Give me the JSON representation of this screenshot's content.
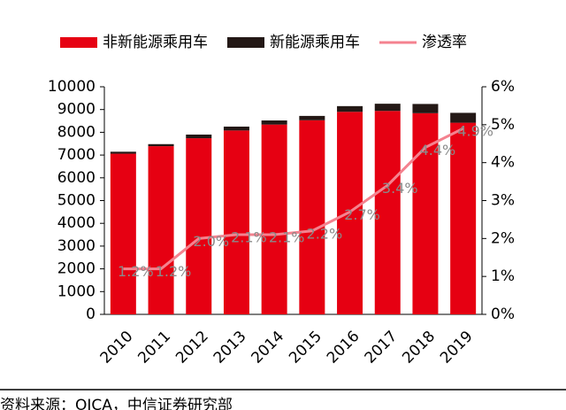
{
  "chart_data": {
    "type": "stacked_bar_line",
    "categories": [
      "2010",
      "2011",
      "2012",
      "2013",
      "2014",
      "2015",
      "2016",
      "2017",
      "2018",
      "2019"
    ],
    "series": [
      {
        "name": "非新能源乘用车",
        "color": "#e60012",
        "values": [
          7060,
          7390,
          7740,
          8080,
          8340,
          8530,
          8900,
          8940,
          8840,
          8420
        ]
      },
      {
        "name": "新能源乘用车",
        "color": "#231815",
        "values": [
          86,
          90,
          160,
          170,
          180,
          190,
          250,
          315,
          405,
          435
        ]
      },
      {
        "name": "渗透率",
        "color": "#f4828f",
        "axis": "y2",
        "type": "line",
        "values": [
          1.2,
          1.2,
          2.0,
          2.1,
          2.1,
          2.2,
          2.7,
          3.4,
          4.4,
          4.9
        ],
        "value_labels": [
          "1.2%",
          "1.2%",
          "2.0%",
          "2.1%",
          "2.1%",
          "2.2%",
          "2.7%",
          "3.4%",
          "4.4%",
          "4.9%"
        ]
      }
    ],
    "ylim": [
      0,
      10000
    ],
    "yticks": [
      0,
      1000,
      2000,
      3000,
      4000,
      5000,
      6000,
      7000,
      8000,
      9000,
      10000
    ],
    "y2lim": [
      0,
      6
    ],
    "y2ticks": [
      {
        "value": 0,
        "label": "0%"
      },
      {
        "value": 1,
        "label": "1%"
      },
      {
        "value": 2,
        "label": "2%"
      },
      {
        "value": 3,
        "label": "3%"
      },
      {
        "value": 4,
        "label": "4%"
      },
      {
        "value": 5,
        "label": "5%"
      },
      {
        "value": 6,
        "label": "6%"
      }
    ],
    "legend": "top",
    "source": "资料来源：OICA，中信证券研究部"
  }
}
